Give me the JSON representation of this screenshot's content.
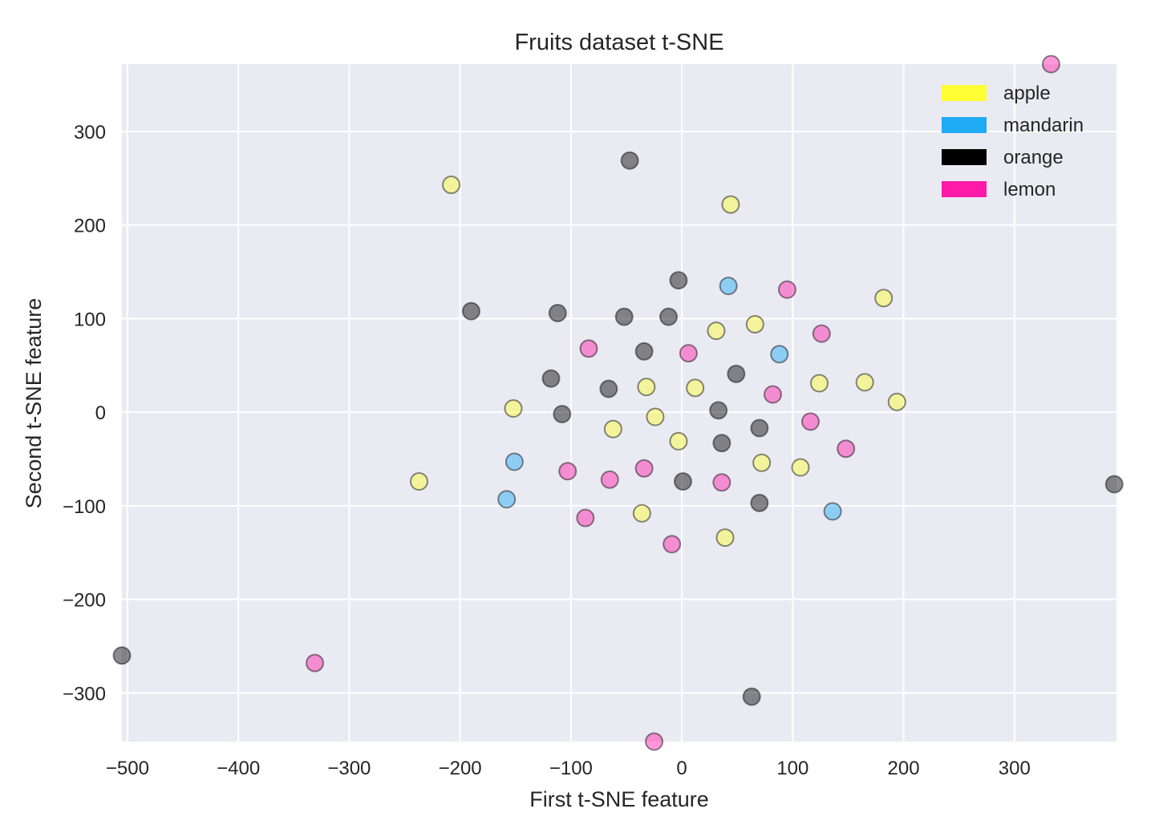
{
  "chart_data": {
    "type": "scatter",
    "title": "Fruits dataset t-SNE",
    "xlabel": "First t-SNE feature",
    "ylabel": "Second t-SNE feature",
    "xlim": [
      -505,
      392
    ],
    "ylim": [
      -352,
      372
    ],
    "xticks": [
      -500,
      -400,
      -300,
      -200,
      -100,
      0,
      100,
      200,
      300
    ],
    "yticks": [
      -300,
      -200,
      -100,
      0,
      100,
      200,
      300
    ],
    "xtick_labels": [
      "−500",
      "−400",
      "−300",
      "−200",
      "−100",
      "0",
      "100",
      "200",
      "300"
    ],
    "ytick_labels": [
      "−300",
      "−200",
      "−100",
      "0",
      "100",
      "200",
      "300"
    ],
    "grid": true,
    "legend_position": "top-right",
    "series": [
      {
        "name": "apple",
        "color": "#ffff33",
        "points": [
          [
            -208,
            243
          ],
          [
            44,
            222
          ],
          [
            182,
            122
          ],
          [
            66,
            94
          ],
          [
            31,
            87
          ],
          [
            124,
            31
          ],
          [
            165,
            32
          ],
          [
            194,
            11
          ],
          [
            -32,
            27
          ],
          [
            12,
            26
          ],
          [
            -152,
            4
          ],
          [
            -24,
            -5
          ],
          [
            -62,
            -18
          ],
          [
            -3,
            -31
          ],
          [
            72,
            -54
          ],
          [
            107,
            -59
          ],
          [
            -237,
            -74
          ],
          [
            -36,
            -108
          ],
          [
            39,
            -134
          ]
        ]
      },
      {
        "name": "mandarin",
        "color": "#1eaaf5",
        "points": [
          [
            42,
            135
          ],
          [
            88,
            62
          ],
          [
            -151,
            -53
          ],
          [
            -158,
            -93
          ],
          [
            136,
            -106
          ]
        ]
      },
      {
        "name": "orange",
        "color": "#000000",
        "points": [
          [
            -47,
            269
          ],
          [
            -3,
            141
          ],
          [
            -190,
            108
          ],
          [
            -112,
            106
          ],
          [
            -52,
            102
          ],
          [
            -12,
            102
          ],
          [
            -34,
            65
          ],
          [
            49,
            41
          ],
          [
            -118,
            36
          ],
          [
            -66,
            25
          ],
          [
            -108,
            -2
          ],
          [
            33,
            2
          ],
          [
            70,
            -17
          ],
          [
            36,
            -33
          ],
          [
            1,
            -74
          ],
          [
            70,
            -97
          ],
          [
            390,
            -77
          ],
          [
            -505,
            -260
          ],
          [
            63,
            -304
          ]
        ]
      },
      {
        "name": "lemon",
        "color": "#ff1aa8",
        "points": [
          [
            333,
            372
          ],
          [
            95,
            131
          ],
          [
            126,
            84
          ],
          [
            -84,
            68
          ],
          [
            6,
            63
          ],
          [
            82,
            19
          ],
          [
            116,
            -10
          ],
          [
            148,
            -39
          ],
          [
            -103,
            -63
          ],
          [
            -65,
            -72
          ],
          [
            -34,
            -60
          ],
          [
            36,
            -75
          ],
          [
            -87,
            -113
          ],
          [
            -9,
            -141
          ],
          [
            -331,
            -268
          ],
          [
            -25,
            -352
          ]
        ]
      }
    ]
  }
}
